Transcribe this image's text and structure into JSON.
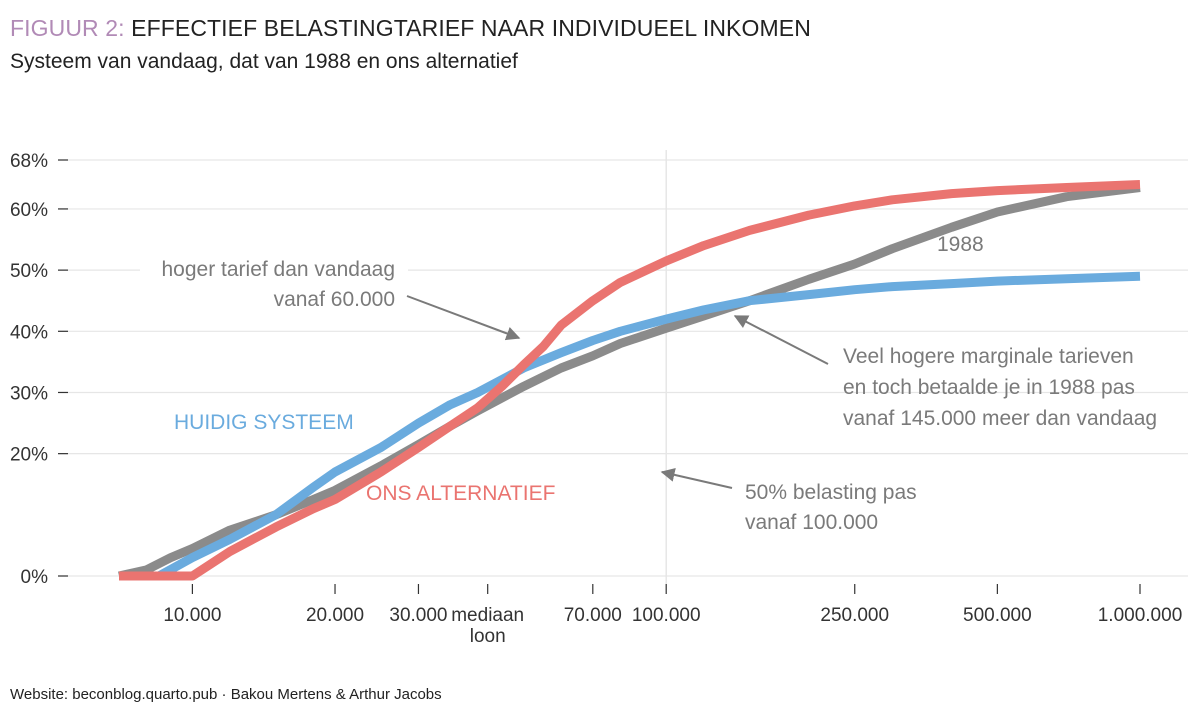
{
  "header": {
    "figure_label": "FIGUUR 2:",
    "title": "EFFECTIEF BELASTINGTARIEF NAAR INDIVIDUEEL INKOMEN",
    "subtitle": "Systeem van vandaag, dat van 1988 en ons alternatief"
  },
  "footer": {
    "credit": "Website: beconblog.quarto.pub · Bakou Mertens & Arthur Jacobs"
  },
  "colors": {
    "huidig": "#6aabde",
    "alternatief": "#ea7470",
    "y1988": "#8b8b8b",
    "grid": "#e6e6e6",
    "annotation": "#7a7a7a"
  },
  "chart_data": {
    "type": "line",
    "x_scale": "log",
    "xlim": [
      6500,
      1200000
    ],
    "ylim": [
      0,
      68
    ],
    "grid": "on",
    "y_ticks": [
      {
        "value": 0,
        "label": "0%"
      },
      {
        "value": 20,
        "label": "20%"
      },
      {
        "value": 30,
        "label": "30%"
      },
      {
        "value": 40,
        "label": "40%"
      },
      {
        "value": 50,
        "label": "50%"
      },
      {
        "value": 60,
        "label": "60%"
      },
      {
        "value": 68,
        "label": "68%"
      }
    ],
    "x_ticks": [
      {
        "value": 10000,
        "label": "10.000"
      },
      {
        "value": 20000,
        "label": "20.000"
      },
      {
        "value": 30000,
        "label": "30.000"
      },
      {
        "value": 42000,
        "label": "mediaan",
        "label2": "loon"
      },
      {
        "value": 70000,
        "label": "70.000"
      },
      {
        "value": 100000,
        "label": "100.000"
      },
      {
        "value": 250000,
        "label": "250.000"
      },
      {
        "value": 500000,
        "label": "500.000"
      },
      {
        "value": 1000000,
        "label": "1.000.000"
      }
    ],
    "series": [
      {
        "key": "y1988",
        "name": "1988",
        "points": [
          [
            7000,
            0
          ],
          [
            8000,
            1
          ],
          [
            9000,
            3
          ],
          [
            10000,
            4.5
          ],
          [
            12000,
            7.5
          ],
          [
            15000,
            10
          ],
          [
            18000,
            12.5
          ],
          [
            20000,
            14
          ],
          [
            25000,
            18
          ],
          [
            30000,
            21.5
          ],
          [
            35000,
            24.5
          ],
          [
            40000,
            27
          ],
          [
            50000,
            31
          ],
          [
            60000,
            34
          ],
          [
            70000,
            36
          ],
          [
            80000,
            38
          ],
          [
            100000,
            40.5
          ],
          [
            120000,
            42.5
          ],
          [
            150000,
            45
          ],
          [
            200000,
            48.5
          ],
          [
            250000,
            51
          ],
          [
            300000,
            53.5
          ],
          [
            400000,
            57
          ],
          [
            500000,
            59.5
          ],
          [
            700000,
            62
          ],
          [
            1000000,
            63.5
          ]
        ]
      },
      {
        "key": "huidig",
        "name": "HUIDIG SYSTEEM",
        "points": [
          [
            7000,
            0
          ],
          [
            8500,
            0
          ],
          [
            10000,
            3
          ],
          [
            12000,
            6
          ],
          [
            15000,
            10
          ],
          [
            18000,
            14.5
          ],
          [
            20000,
            17
          ],
          [
            25000,
            21
          ],
          [
            30000,
            25
          ],
          [
            35000,
            28
          ],
          [
            40000,
            30
          ],
          [
            50000,
            34
          ],
          [
            60000,
            36.5
          ],
          [
            70000,
            38.5
          ],
          [
            80000,
            40
          ],
          [
            100000,
            42
          ],
          [
            120000,
            43.5
          ],
          [
            150000,
            45
          ],
          [
            200000,
            46
          ],
          [
            250000,
            46.8
          ],
          [
            300000,
            47.3
          ],
          [
            400000,
            47.8
          ],
          [
            500000,
            48.2
          ],
          [
            700000,
            48.6
          ],
          [
            1000000,
            49
          ]
        ]
      },
      {
        "key": "alternatief",
        "name": "ONS ALTERNATIEF",
        "points": [
          [
            7000,
            0
          ],
          [
            10000,
            0
          ],
          [
            12000,
            4
          ],
          [
            15000,
            8
          ],
          [
            18000,
            11
          ],
          [
            20000,
            12.5
          ],
          [
            25000,
            17
          ],
          [
            30000,
            21
          ],
          [
            35000,
            24.5
          ],
          [
            40000,
            27.5
          ],
          [
            45000,
            31
          ],
          [
            50000,
            34.5
          ],
          [
            55000,
            37.5
          ],
          [
            60000,
            41
          ],
          [
            70000,
            45
          ],
          [
            80000,
            48
          ],
          [
            100000,
            51.5
          ],
          [
            120000,
            54
          ],
          [
            150000,
            56.5
          ],
          [
            200000,
            59
          ],
          [
            250000,
            60.5
          ],
          [
            300000,
            61.5
          ],
          [
            400000,
            62.5
          ],
          [
            500000,
            63
          ],
          [
            700000,
            63.5
          ],
          [
            1000000,
            64
          ]
        ]
      }
    ],
    "annotations": [
      {
        "key": "hoger",
        "lines": [
          "hoger tarief dan vandaag",
          "vanaf 60.000"
        ]
      },
      {
        "key": "veel",
        "lines": [
          "Veel hogere marginale tarieven",
          "en toch betaalde je in 1988 pas",
          "vanaf 145.000 meer dan vandaag"
        ]
      },
      {
        "key": "vijftig",
        "lines": [
          "50% belasting pas",
          "vanaf 100.000"
        ]
      }
    ],
    "series_labels": [
      {
        "key": "huidig",
        "text": "HUIDIG SYSTEEM"
      },
      {
        "key": "alternatief",
        "text": "ONS ALTERNATIEF"
      },
      {
        "key": "y1988",
        "text": "1988"
      }
    ]
  }
}
